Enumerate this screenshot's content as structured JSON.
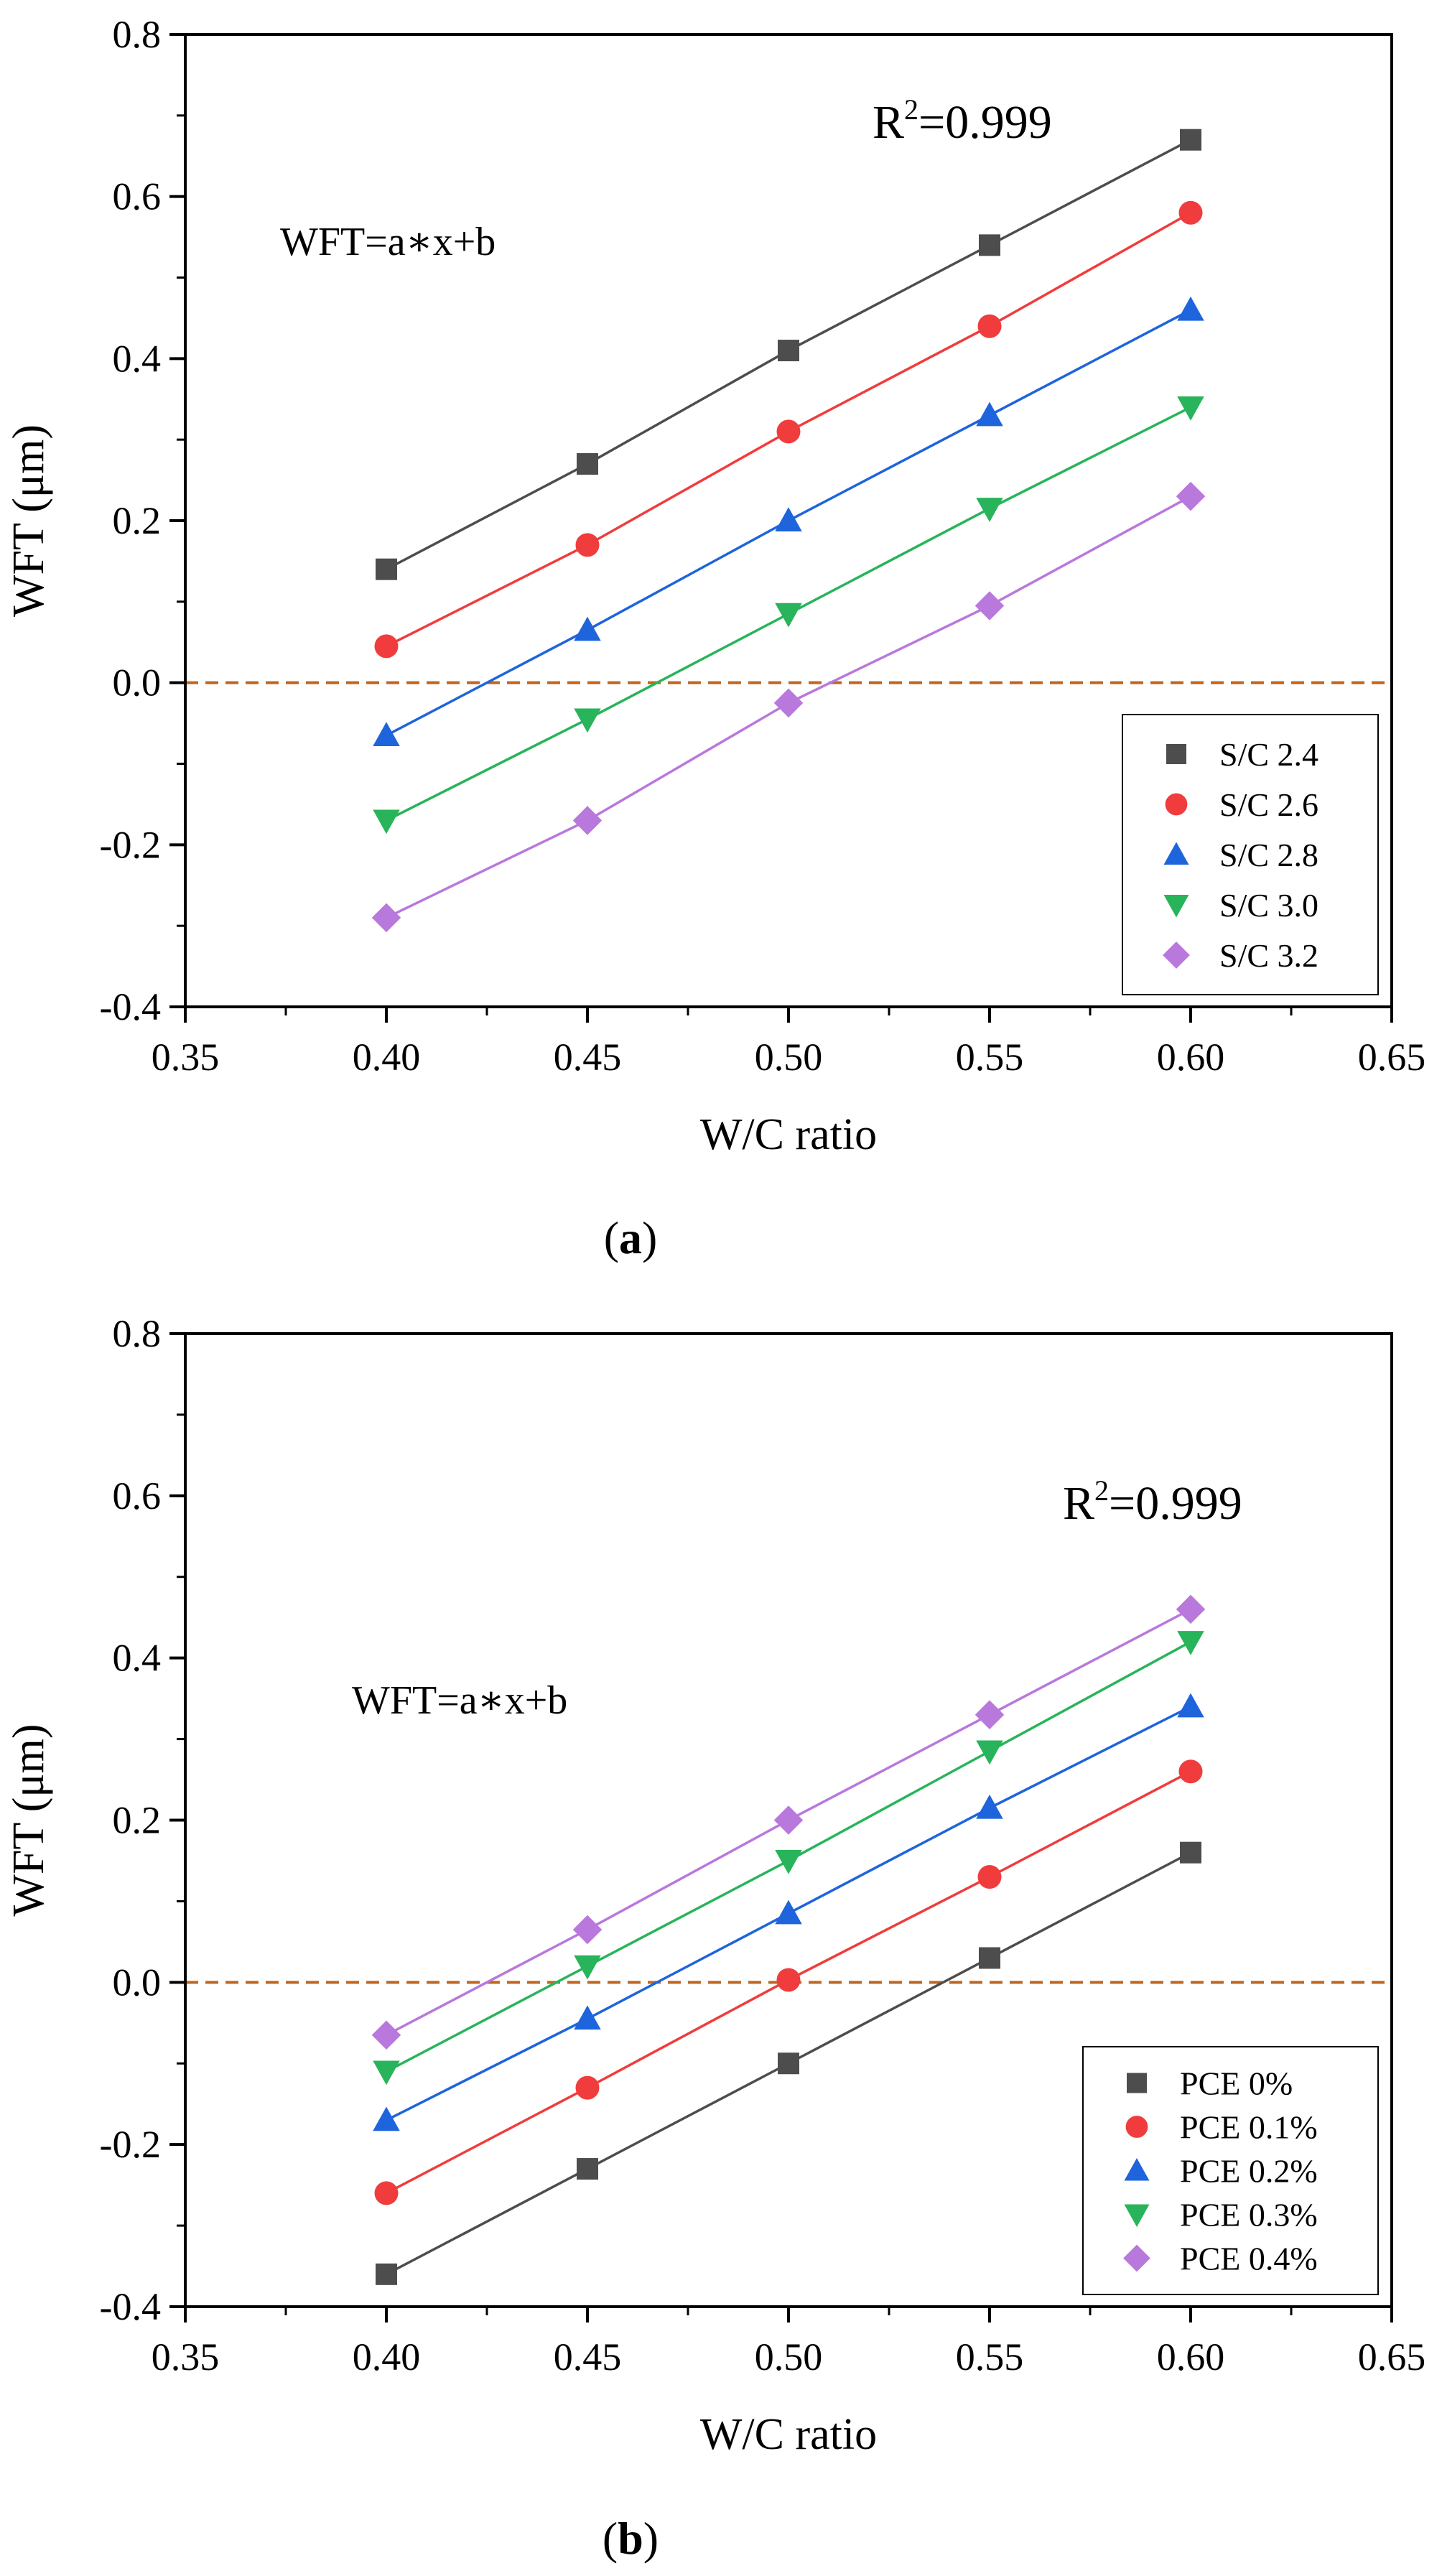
{
  "colors": {
    "series": [
      "#4d4d4d",
      "#f03c3c",
      "#1e64dc",
      "#28b45a",
      "#b978dc"
    ],
    "zero_line": "#c0651e",
    "axis": "#000000"
  },
  "chart_data": [
    {
      "type": "line",
      "panel_label": "(a)",
      "title": "",
      "xlabel": "W/C ratio",
      "ylabel": "WFT (μm)",
      "xlim": [
        0.35,
        0.65
      ],
      "ylim": [
        -0.4,
        0.8
      ],
      "xticks": [
        "0.35",
        "0.40",
        "0.45",
        "0.50",
        "0.55",
        "0.60",
        "0.65"
      ],
      "yticks": [
        "-0.4",
        "-0.2",
        "0.0",
        "0.2",
        "0.4",
        "0.6",
        "0.8"
      ],
      "reference_line_y": 0.0,
      "legend_position": "bottom-right",
      "annotations": {
        "equation": "WFT=a∗x+b",
        "r2_prefix": "R",
        "r2_sup": "2",
        "r2_value": "=0.999"
      },
      "x": [
        0.4,
        0.45,
        0.5,
        0.55,
        0.6
      ],
      "series": [
        {
          "name": "S/C 2.4",
          "marker": "square",
          "values": [
            0.14,
            0.27,
            0.41,
            0.54,
            0.67
          ]
        },
        {
          "name": "S/C 2.6",
          "marker": "circle",
          "values": [
            0.045,
            0.17,
            0.31,
            0.44,
            0.58
          ]
        },
        {
          "name": "S/C 2.8",
          "marker": "triangle-up",
          "values": [
            -0.065,
            0.065,
            0.2,
            0.33,
            0.46
          ]
        },
        {
          "name": "S/C 3.0",
          "marker": "triangle-down",
          "values": [
            -0.17,
            -0.045,
            0.085,
            0.215,
            0.34
          ]
        },
        {
          "name": "S/C 3.2",
          "marker": "diamond",
          "values": [
            -0.29,
            -0.17,
            -0.025,
            0.095,
            0.23
          ]
        }
      ]
    },
    {
      "type": "line",
      "panel_label": "(b)",
      "title": "",
      "xlabel": "W/C ratio",
      "ylabel": "WFT (μm)",
      "xlim": [
        0.35,
        0.65
      ],
      "ylim": [
        -0.4,
        0.8
      ],
      "xticks": [
        "0.35",
        "0.40",
        "0.45",
        "0.50",
        "0.55",
        "0.60",
        "0.65"
      ],
      "yticks": [
        "-0.4",
        "-0.2",
        "0.0",
        "0.2",
        "0.4",
        "0.6",
        "0.8"
      ],
      "reference_line_y": 0.0,
      "legend_position": "bottom-right",
      "annotations": {
        "equation": "WFT=a∗x+b",
        "r2_prefix": "R",
        "r2_sup": "2",
        "r2_value": "=0.999"
      },
      "x": [
        0.4,
        0.45,
        0.5,
        0.55,
        0.6
      ],
      "series": [
        {
          "name": "PCE 0%",
          "marker": "square",
          "values": [
            -0.36,
            -0.23,
            -0.1,
            0.03,
            0.16
          ]
        },
        {
          "name": "PCE 0.1%",
          "marker": "circle",
          "values": [
            -0.26,
            -0.13,
            0.003,
            0.13,
            0.26
          ]
        },
        {
          "name": "PCE 0.2%",
          "marker": "triangle-up",
          "values": [
            -0.17,
            -0.045,
            0.085,
            0.215,
            0.34
          ]
        },
        {
          "name": "PCE 0.3%",
          "marker": "triangle-down",
          "values": [
            -0.11,
            0.02,
            0.15,
            0.285,
            0.42
          ]
        },
        {
          "name": "PCE 0.4%",
          "marker": "diamond",
          "values": [
            -0.065,
            0.065,
            0.2,
            0.33,
            0.46
          ]
        }
      ]
    }
  ]
}
